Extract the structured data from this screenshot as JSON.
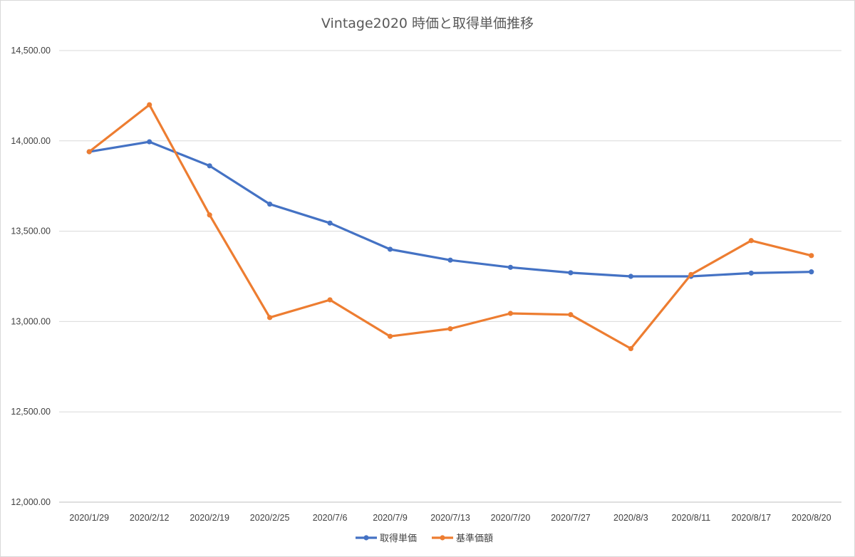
{
  "chart_data": {
    "type": "line",
    "title": "Vintage2020 時価と取得単価推移",
    "xlabel": "",
    "ylabel": "",
    "categories": [
      "2020/1/29",
      "2020/2/12",
      "2020/2/19",
      "2020/2/25",
      "2020/7/6",
      "2020/7/9",
      "2020/7/13",
      "2020/7/20",
      "2020/7/27",
      "2020/8/3",
      "2020/8/11",
      "2020/8/17",
      "2020/8/20"
    ],
    "ylim": [
      12000,
      14500
    ],
    "y_ticks": [
      12000,
      12500,
      13000,
      13500,
      14000,
      14500
    ],
    "y_tick_labels": [
      "12,000.00",
      "12,500.00",
      "13,000.00",
      "13,500.00",
      "14,000.00",
      "14,500.00"
    ],
    "grid": true,
    "legend_position": "bottom",
    "series": [
      {
        "name": "取得単価",
        "color": "#4472C4",
        "values": [
          13940,
          13995,
          13862,
          13650,
          13545,
          13400,
          13340,
          13300,
          13270,
          13250,
          13250,
          13268,
          13275
        ]
      },
      {
        "name": "基準価額",
        "color": "#ED7D31",
        "values": [
          13940,
          14200,
          13590,
          13022,
          13120,
          12918,
          12960,
          13045,
          13038,
          12850,
          13260,
          13448,
          13365
        ]
      }
    ]
  }
}
